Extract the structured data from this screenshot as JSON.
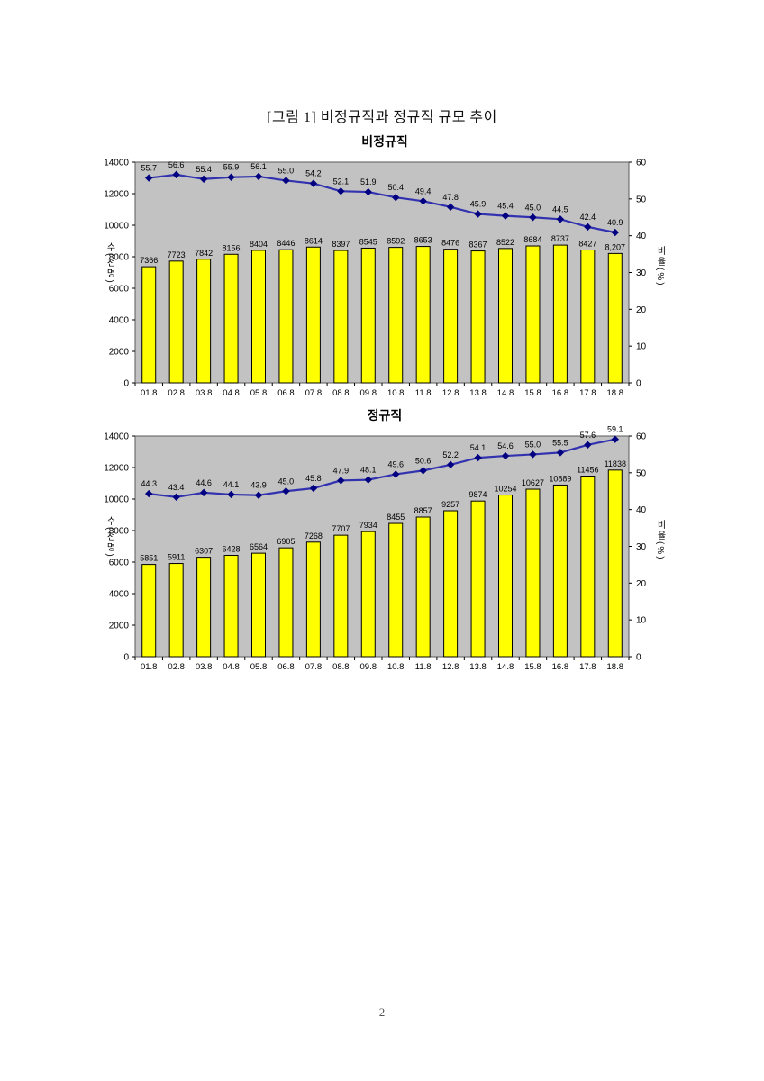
{
  "page": {
    "title": "[그림 1] 비정규직과 정규직 규모 추이",
    "number": "2"
  },
  "colors": {
    "plot_bg": "#c2c2c2",
    "plot_border": "#5a5a5a",
    "bar_fill": "#ffff00",
    "bar_stroke": "#000000",
    "line": "#3232b0",
    "marker": "#000080",
    "text": "#000000"
  },
  "chart_data": [
    {
      "type": "bar+line",
      "title": "비정규직",
      "grid": false,
      "legend": "none",
      "categories": [
        "01.8",
        "02.8",
        "03.8",
        "04.8",
        "05.8",
        "06.8",
        "07.8",
        "08.8",
        "09.8",
        "10.8",
        "11.8",
        "12.8",
        "13.8",
        "14.8",
        "15.8",
        "16.8",
        "17.8",
        "18.8"
      ],
      "left_axis": {
        "title": "수(천명)",
        "min": 0,
        "max": 14000,
        "step": 2000
      },
      "right_axis": {
        "title": "비율(%)",
        "min": 0,
        "max": 60,
        "step": 10
      },
      "series": [
        {
          "name": "수(천명)",
          "type": "bar",
          "axis": "left",
          "values": [
            7366,
            7723,
            7842,
            8156,
            8404,
            8446,
            8614,
            8397,
            8545,
            8592,
            8653,
            8476,
            8367,
            8522,
            8684,
            8737,
            8427,
            8207
          ],
          "labels": [
            "7366",
            "7723",
            "7842",
            "8156",
            "8404",
            "8446",
            "8614",
            "8397",
            "8545",
            "8592",
            "8653",
            "8476",
            "8367",
            "8522",
            "8684",
            "8737",
            "8427",
            "8,207"
          ]
        },
        {
          "name": "비율(%)",
          "type": "line",
          "axis": "right",
          "values": [
            55.7,
            56.6,
            55.4,
            55.9,
            56.1,
            55.0,
            54.2,
            52.1,
            51.9,
            50.4,
            49.4,
            47.8,
            45.9,
            45.4,
            45.0,
            44.5,
            42.4,
            40.9
          ],
          "labels": [
            "55.7",
            "56.6",
            "55.4",
            "55.9",
            "56.1",
            "55.0",
            "54.2",
            "52.1",
            "51.9",
            "50.4",
            "49.4",
            "47.8",
            "45.9",
            "45.4",
            "45.0",
            "44.5",
            "42.4",
            "40.9"
          ]
        }
      ]
    },
    {
      "type": "bar+line",
      "title": "정규직",
      "grid": false,
      "legend": "none",
      "categories": [
        "01.8",
        "02.8",
        "03.8",
        "04.8",
        "05.8",
        "06.8",
        "07.8",
        "08.8",
        "09.8",
        "10.8",
        "11.8",
        "12.8",
        "13.8",
        "14.8",
        "15.8",
        "16.8",
        "17.8",
        "18.8"
      ],
      "left_axis": {
        "title": "수(천명)",
        "min": 0,
        "max": 14000,
        "step": 2000
      },
      "right_axis": {
        "title": "비율(%)",
        "min": 0,
        "max": 60,
        "step": 10
      },
      "series": [
        {
          "name": "수(천명)",
          "type": "bar",
          "axis": "left",
          "values": [
            5851,
            5911,
            6307,
            6428,
            6564,
            6905,
            7268,
            7707,
            7934,
            8455,
            8857,
            9257,
            9874,
            10254,
            10627,
            10889,
            11456,
            11838
          ],
          "labels": [
            "5851",
            "5911",
            "6307",
            "6428",
            "6564",
            "6905",
            "7268",
            "7707",
            "7934",
            "8455",
            "8857",
            "9257",
            "9874",
            "10254",
            "10627",
            "10889",
            "11456",
            "11838"
          ]
        },
        {
          "name": "비율(%)",
          "type": "line",
          "axis": "right",
          "values": [
            44.3,
            43.4,
            44.6,
            44.1,
            43.9,
            45.0,
            45.8,
            47.9,
            48.1,
            49.6,
            50.6,
            52.2,
            54.1,
            54.6,
            55.0,
            55.5,
            57.6,
            59.1
          ],
          "labels": [
            "44.3",
            "43.4",
            "44.6",
            "44.1",
            "43.9",
            "45.0",
            "45.8",
            "47.9",
            "48.1",
            "49.6",
            "50.6",
            "52.2",
            "54.1",
            "54.6",
            "55.0",
            "55.5",
            "57.6",
            "59.1"
          ]
        }
      ]
    }
  ]
}
